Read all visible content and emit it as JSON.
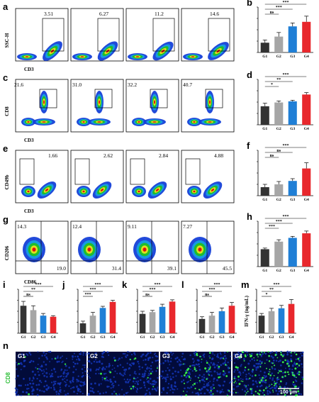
{
  "colors": {
    "g1": "#333333",
    "g2": "#a6a6a6",
    "g3": "#1f7fd6",
    "g4": "#e8272c",
    "density_high": "#e01010",
    "density_mid": "#20c020",
    "density_low": "#1540d8"
  },
  "flow_rows": [
    {
      "letter": "a",
      "ylabel": "SSC-H",
      "xlabel": "CD3",
      "values": [
        "3.51",
        "6.27",
        "11.2",
        "14.6"
      ],
      "extra": []
    },
    {
      "letter": "c",
      "ylabel": "CD8",
      "xlabel": "CD3",
      "values": [
        "21.6",
        "31.0",
        "32.2",
        "40.7"
      ],
      "extra": []
    },
    {
      "letter": "e",
      "ylabel": "CD49b",
      "xlabel": "CD3",
      "values": [
        "1.66",
        "2.62",
        "2.84",
        "4.88"
      ],
      "extra": []
    },
    {
      "letter": "g",
      "ylabel": "CD206",
      "xlabel": "CD86",
      "values": [
        "14.3",
        "12.4",
        "9.11",
        "7.27"
      ],
      "extra": [
        "19.0",
        "31.4",
        "39.1",
        "45.5"
      ]
    }
  ],
  "chart_data": [
    {
      "panel": "b",
      "type": "bar",
      "categories": [
        "G1",
        "G2",
        "G3",
        "G4"
      ],
      "values": [
        4.3,
        7.0,
        11.5,
        13.5
      ],
      "errors": [
        1.2,
        1.8,
        1.5,
        2.5
      ],
      "ylim": [
        0,
        20
      ],
      "ylabel": "",
      "sig": [
        {
          "a": 0,
          "b": 1,
          "label": "ns",
          "level": 0
        },
        {
          "a": 0,
          "b": 2,
          "label": "***",
          "level": 1
        },
        {
          "a": 0,
          "b": 3,
          "label": "***",
          "level": 2
        }
      ]
    },
    {
      "panel": "d",
      "type": "bar",
      "categories": [
        "G1",
        "G2",
        "G3",
        "G4"
      ],
      "values": [
        24.5,
        29.5,
        31.0,
        40.0
      ],
      "errors": [
        4.0,
        2.0,
        1.5,
        2.5
      ],
      "ylim": [
        0,
        60
      ],
      "ylabel": "",
      "sig": [
        {
          "a": 0,
          "b": 1,
          "label": "*",
          "level": 0
        },
        {
          "a": 0,
          "b": 2,
          "label": "**",
          "level": 1
        },
        {
          "a": 0,
          "b": 3,
          "label": "***",
          "level": 2
        }
      ]
    },
    {
      "panel": "f",
      "type": "bar",
      "categories": [
        "G1",
        "G2",
        "G3",
        "G4"
      ],
      "values": [
        1.5,
        2.0,
        2.6,
        4.8
      ],
      "errors": [
        0.5,
        0.5,
        0.4,
        1.0
      ],
      "ylim": [
        0,
        8
      ],
      "ylabel": "",
      "sig": [
        {
          "a": 0,
          "b": 1,
          "label": "ns",
          "level": 0
        },
        {
          "a": 0,
          "b": 2,
          "label": "ns",
          "level": 1
        },
        {
          "a": 0,
          "b": 3,
          "label": "***",
          "level": 2
        }
      ]
    },
    {
      "panel": "h",
      "type": "bar",
      "categories": [
        "G1",
        "G2",
        "G3",
        "G4"
      ],
      "values": [
        23.0,
        33.0,
        38.0,
        44.0
      ],
      "errors": [
        1.5,
        2.5,
        2.0,
        3.0
      ],
      "ylim": [
        0,
        60
      ],
      "ylabel": "",
      "sig": [
        {
          "a": 0,
          "b": 1,
          "label": "***",
          "level": 0
        },
        {
          "a": 0,
          "b": 2,
          "label": "***",
          "level": 1
        },
        {
          "a": 0,
          "b": 3,
          "label": "***",
          "level": 2
        }
      ]
    },
    {
      "panel": "i",
      "type": "bar",
      "categories": [
        "G1",
        "G2",
        "G3",
        "G4"
      ],
      "values": [
        12.5,
        10.5,
        8.0,
        7.5
      ],
      "errors": [
        2.0,
        2.0,
        1.0,
        0.5
      ],
      "ylim": [
        0,
        20
      ],
      "ylabel": "",
      "sig": [
        {
          "a": 0,
          "b": 1,
          "label": "ns",
          "level": 0
        },
        {
          "a": 0,
          "b": 2,
          "label": "**",
          "level": 1
        },
        {
          "a": 0,
          "b": 3,
          "label": "***",
          "level": 2
        }
      ]
    },
    {
      "panel": "j",
      "type": "bar",
      "categories": [
        "G1",
        "G2",
        "G3",
        "G4"
      ],
      "values": [
        1.8,
        3.2,
        4.6,
        5.7
      ],
      "errors": [
        0.4,
        0.6,
        0.3,
        0.3
      ],
      "ylim": [
        0,
        8
      ],
      "ylabel": "",
      "sig": [
        {
          "a": 0,
          "b": 1,
          "label": "***",
          "level": 0
        },
        {
          "a": 0,
          "b": 2,
          "label": "***",
          "level": 1
        },
        {
          "a": 0,
          "b": 3,
          "label": "***",
          "level": 2
        }
      ]
    },
    {
      "panel": "k",
      "type": "bar",
      "categories": [
        "G1",
        "G2",
        "G3",
        "G4"
      ],
      "values": [
        2.2,
        2.4,
        3.0,
        3.6
      ],
      "errors": [
        0.3,
        0.2,
        0.3,
        0.2
      ],
      "ylim": [
        0,
        5
      ],
      "ylabel": "",
      "sig": [
        {
          "a": 0,
          "b": 1,
          "label": "ns",
          "level": 0
        },
        {
          "a": 0,
          "b": 2,
          "label": "***",
          "level": 1
        },
        {
          "a": 0,
          "b": 3,
          "label": "***",
          "level": 2
        }
      ]
    },
    {
      "panel": "l",
      "type": "bar",
      "categories": [
        "G1",
        "G2",
        "G3",
        "G4"
      ],
      "values": [
        6.5,
        8.0,
        10.0,
        12.5
      ],
      "errors": [
        1.0,
        1.5,
        1.5,
        1.5
      ],
      "ylim": [
        0,
        20
      ],
      "ylabel": "",
      "sig": [
        {
          "a": 0,
          "b": 1,
          "label": "ns",
          "level": 0
        },
        {
          "a": 0,
          "b": 2,
          "label": "***",
          "level": 1
        },
        {
          "a": 0,
          "b": 3,
          "label": "***",
          "level": 2
        }
      ]
    },
    {
      "panel": "m",
      "type": "bar",
      "categories": [
        "G1",
        "G2",
        "G3",
        "G4"
      ],
      "values": [
        1.2,
        1.5,
        1.7,
        2.0
      ],
      "errors": [
        0.15,
        0.2,
        0.2,
        0.3
      ],
      "ylim": [
        0,
        3
      ],
      "ylabel": "IFN-γ (ng/mL)",
      "sig": [
        {
          "a": 0,
          "b": 1,
          "label": "*",
          "level": 0
        },
        {
          "a": 0,
          "b": 2,
          "label": "**",
          "level": 1
        },
        {
          "a": 0,
          "b": 3,
          "label": "***",
          "level": 2
        }
      ]
    }
  ],
  "micrographs": {
    "letter": "n",
    "ylabel": "CD8",
    "scale": "100 μm",
    "panels": [
      {
        "label": "G1",
        "density": 0.02
      },
      {
        "label": "G2",
        "density": 0.05
      },
      {
        "label": "G3",
        "density": 0.18
      },
      {
        "label": "G4",
        "density": 0.4
      }
    ]
  }
}
